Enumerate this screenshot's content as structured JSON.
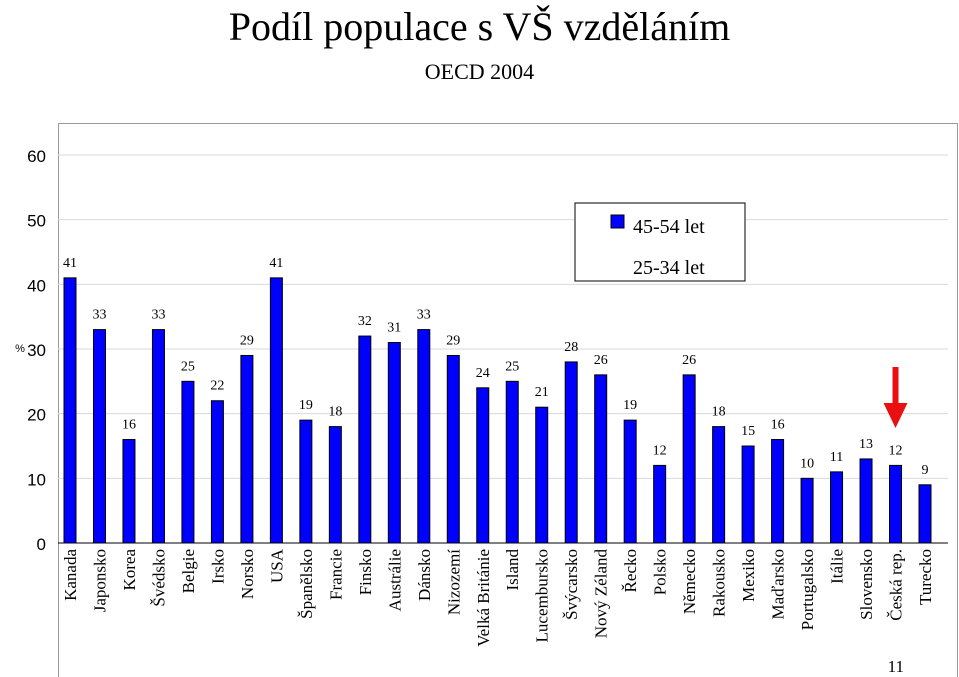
{
  "title": "Podíl populace s VŠ vzděláním",
  "subtitle": "OECD 2004",
  "page_number": "11",
  "colors": {
    "bar": "#0000ff",
    "bar_outline": "#000000",
    "arrow": "#e81010",
    "grid": "#d9d9d9"
  },
  "chart_data": {
    "type": "bar",
    "ylabel": "%",
    "ylim": [
      0,
      60
    ],
    "yticks": [
      "0",
      "10",
      "20",
      "30",
      "40",
      "50",
      "60"
    ],
    "grid": true,
    "legend_position": "top-right",
    "legend": [
      "45-54 let",
      "25-34 let"
    ],
    "categories": [
      "Kanada",
      "Japonsko",
      "Korea",
      "Švédsko",
      "Belgie",
      "Irsko",
      "Norsko",
      "USA",
      "Španělsko",
      "Francie",
      "Finsko",
      "Austrálie",
      "Dánsko",
      "Nizozemí",
      "Velká Británie",
      "Island",
      "Lucembursko",
      "Švýcarsko",
      "Nový Zéland",
      "Řecko",
      "Polsko",
      "Německo",
      "Rakousko",
      "Mexiko",
      "Maďarsko",
      "Portugalsko",
      "Itálie",
      "Slovensko",
      "Česká rep.",
      "Turecko"
    ],
    "series": [
      {
        "name": "45-54 let",
        "values": [
          41,
          33,
          16,
          33,
          25,
          22,
          29,
          41,
          19,
          18,
          32,
          31,
          33,
          29,
          24,
          25,
          21,
          28,
          26,
          19,
          12,
          26,
          18,
          15,
          16,
          10,
          11,
          13,
          12,
          9
        ]
      }
    ],
    "highlight": "Česká rep."
  }
}
